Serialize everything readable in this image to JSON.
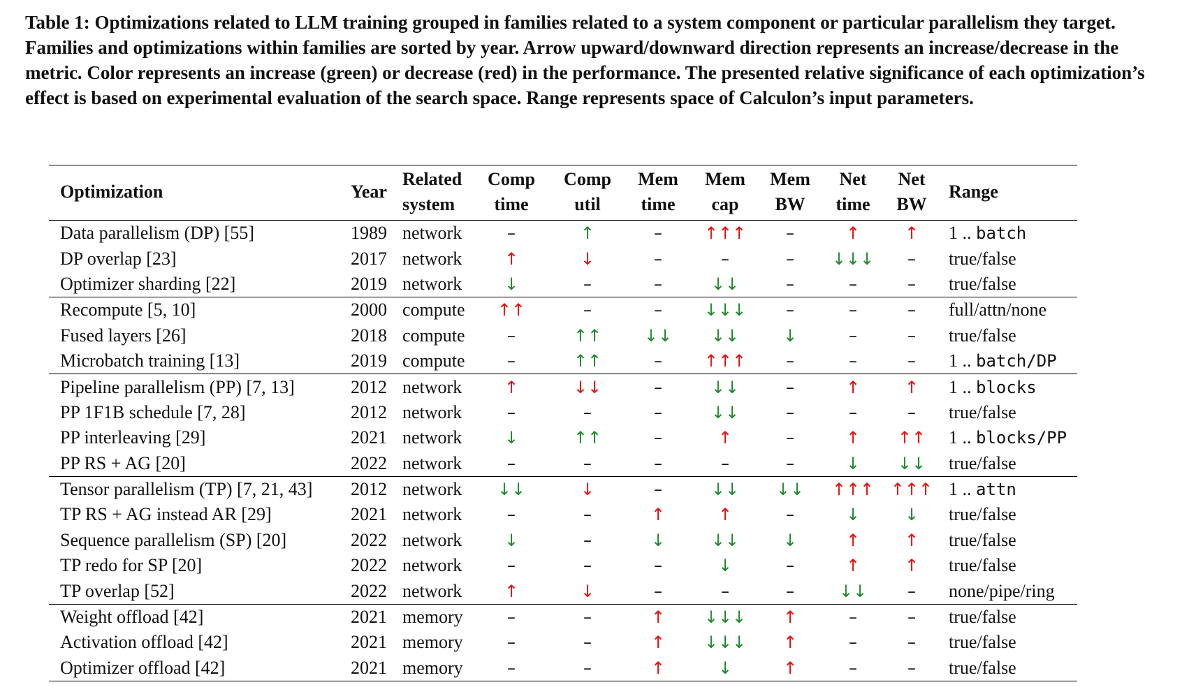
{
  "caption": "Table 1: Optimizations related to LLM training grouped in families related to a system component or particular parallelism they target. Families and optimizations within families are sorted by year. Arrow upward/downward direction represents an increase/decrease in the metric. Color represents an increase (green) or decrease (red) in the performance. The presented relative significance of each optimization’s effect is based on experimental evaluation of the search space. Range represents space of Calculon’s input parameters.",
  "headers": {
    "optimization": "Optimization",
    "year": "Year",
    "related_1": "Related",
    "related_2": "system",
    "comp_time_1": "Comp",
    "comp_time_2": "time",
    "comp_util_1": "Comp",
    "comp_util_2": "util",
    "mem_time_1": "Mem",
    "mem_time_2": "time",
    "mem_cap_1": "Mem",
    "mem_cap_2": "cap",
    "mem_bw_1": "Mem",
    "mem_bw_2": "BW",
    "net_time_1": "Net",
    "net_time_2": "time",
    "net_bw_1": "Net",
    "net_bw_2": "BW",
    "range": "Range"
  },
  "color_legend": {
    "green": "#1e8a2e",
    "red": "#e8110f"
  },
  "rows": [
    {
      "name": "Data parallelism (DP) [55]",
      "year": "1989",
      "system": "network",
      "cells": [
        [
          "–",
          "n"
        ],
        [
          "↑",
          "g"
        ],
        [
          "–",
          "n"
        ],
        [
          "↑↑↑",
          "r"
        ],
        [
          "–",
          "n"
        ],
        [
          "↑",
          "r"
        ],
        [
          "↑",
          "r"
        ]
      ],
      "range": "1 .. batch",
      "range_mono": "batch",
      "range_prefix": "1 .. ",
      "family_start": false
    },
    {
      "name": "DP overlap [23]",
      "year": "2017",
      "system": "network",
      "cells": [
        [
          "↑",
          "r"
        ],
        [
          "↓",
          "r"
        ],
        [
          "–",
          "n"
        ],
        [
          "–",
          "n"
        ],
        [
          "–",
          "n"
        ],
        [
          "↓↓↓",
          "g"
        ],
        [
          "–",
          "n"
        ]
      ],
      "range": "true/false",
      "family_start": false
    },
    {
      "name": "Optimizer sharding [22]",
      "year": "2019",
      "system": "network",
      "cells": [
        [
          "↓",
          "g"
        ],
        [
          "–",
          "n"
        ],
        [
          "–",
          "n"
        ],
        [
          "↓↓",
          "g"
        ],
        [
          "–",
          "n"
        ],
        [
          "–",
          "n"
        ],
        [
          "–",
          "n"
        ]
      ],
      "range": "true/false",
      "family_start": false
    },
    {
      "name": "Recompute [5, 10]",
      "year": "2000",
      "system": "compute",
      "cells": [
        [
          "↑↑",
          "r"
        ],
        [
          "–",
          "n"
        ],
        [
          "–",
          "n"
        ],
        [
          "↓↓↓",
          "g"
        ],
        [
          "–",
          "n"
        ],
        [
          "–",
          "n"
        ],
        [
          "–",
          "n"
        ]
      ],
      "range": "full/attn/none",
      "family_start": true
    },
    {
      "name": "Fused layers [26]",
      "year": "2018",
      "system": "compute",
      "cells": [
        [
          "–",
          "n"
        ],
        [
          "↑↑",
          "g"
        ],
        [
          "↓↓",
          "g"
        ],
        [
          "↓↓",
          "g"
        ],
        [
          "↓",
          "g"
        ],
        [
          "–",
          "n"
        ],
        [
          "–",
          "n"
        ]
      ],
      "range": "true/false",
      "family_start": false
    },
    {
      "name": "Microbatch training [13]",
      "year": "2019",
      "system": "compute",
      "cells": [
        [
          "–",
          "n"
        ],
        [
          "↑↑",
          "g"
        ],
        [
          "–",
          "n"
        ],
        [
          "↑↑↑",
          "r"
        ],
        [
          "–",
          "n"
        ],
        [
          "–",
          "n"
        ],
        [
          "–",
          "n"
        ]
      ],
      "range_prefix": "1 .. ",
      "range_mono": "batch/DP",
      "family_start": false
    },
    {
      "name": "Pipeline parallelism (PP) [7, 13]",
      "year": "2012",
      "system": "network",
      "cells": [
        [
          "↑",
          "r"
        ],
        [
          "↓↓",
          "r"
        ],
        [
          "–",
          "n"
        ],
        [
          "↓↓",
          "g"
        ],
        [
          "–",
          "n"
        ],
        [
          "↑",
          "r"
        ],
        [
          "↑",
          "r"
        ]
      ],
      "range_prefix": "1 .. ",
      "range_mono": "blocks",
      "family_start": true
    },
    {
      "name": "PP 1F1B schedule [7, 28]",
      "year": "2012",
      "system": "network",
      "cells": [
        [
          "–",
          "n"
        ],
        [
          "–",
          "n"
        ],
        [
          "–",
          "n"
        ],
        [
          "↓↓",
          "g"
        ],
        [
          "–",
          "n"
        ],
        [
          "–",
          "n"
        ],
        [
          "–",
          "n"
        ]
      ],
      "range": "true/false",
      "family_start": false
    },
    {
      "name": "PP interleaving [29]",
      "year": "2021",
      "system": "network",
      "cells": [
        [
          "↓",
          "g"
        ],
        [
          "↑↑",
          "g"
        ],
        [
          "–",
          "n"
        ],
        [
          "↑",
          "r"
        ],
        [
          "–",
          "n"
        ],
        [
          "↑",
          "r"
        ],
        [
          "↑↑",
          "r"
        ]
      ],
      "range_prefix": "1 .. ",
      "range_mono": "blocks/PP",
      "family_start": false
    },
    {
      "name": "PP RS + AG [20]",
      "year": "2022",
      "system": "network",
      "cells": [
        [
          "–",
          "n"
        ],
        [
          "–",
          "n"
        ],
        [
          "–",
          "n"
        ],
        [
          "–",
          "n"
        ],
        [
          "–",
          "n"
        ],
        [
          "↓",
          "g"
        ],
        [
          "↓↓",
          "g"
        ]
      ],
      "range": "true/false",
      "family_start": false
    },
    {
      "name": "Tensor parallelism (TP) [7, 21, 43]",
      "year": "2012",
      "system": "network",
      "cells": [
        [
          "↓↓",
          "g"
        ],
        [
          "↓",
          "r"
        ],
        [
          "–",
          "n"
        ],
        [
          "↓↓",
          "g"
        ],
        [
          "↓↓",
          "g"
        ],
        [
          "↑↑↑",
          "r"
        ],
        [
          "↑↑↑",
          "r"
        ]
      ],
      "range_prefix": "1 .. ",
      "range_mono": "attn",
      "family_start": true
    },
    {
      "name": "TP RS + AG instead AR [29]",
      "year": "2021",
      "system": "network",
      "cells": [
        [
          "–",
          "n"
        ],
        [
          "–",
          "n"
        ],
        [
          "↑",
          "r"
        ],
        [
          "↑",
          "r"
        ],
        [
          "–",
          "n"
        ],
        [
          "↓",
          "g"
        ],
        [
          "↓",
          "g"
        ]
      ],
      "range": "true/false",
      "family_start": false
    },
    {
      "name": "Sequence parallelism (SP) [20]",
      "year": "2022",
      "system": "network",
      "cells": [
        [
          "↓",
          "g"
        ],
        [
          "–",
          "n"
        ],
        [
          "↓",
          "g"
        ],
        [
          "↓↓",
          "g"
        ],
        [
          "↓",
          "g"
        ],
        [
          "↑",
          "r"
        ],
        [
          "↑",
          "r"
        ]
      ],
      "range": "true/false",
      "family_start": false
    },
    {
      "name": "TP redo for SP [20]",
      "year": "2022",
      "system": "network",
      "cells": [
        [
          "–",
          "n"
        ],
        [
          "–",
          "n"
        ],
        [
          "–",
          "n"
        ],
        [
          "↓",
          "g"
        ],
        [
          "–",
          "n"
        ],
        [
          "↑",
          "r"
        ],
        [
          "↑",
          "r"
        ]
      ],
      "range": "true/false",
      "family_start": false
    },
    {
      "name": "TP overlap [52]",
      "year": "2022",
      "system": "network",
      "cells": [
        [
          "↑",
          "r"
        ],
        [
          "↓",
          "r"
        ],
        [
          "–",
          "n"
        ],
        [
          "–",
          "n"
        ],
        [
          "–",
          "n"
        ],
        [
          "↓↓",
          "g"
        ],
        [
          "–",
          "n"
        ]
      ],
      "range": "none/pipe/ring",
      "family_start": false
    },
    {
      "name": "Weight offload [42]",
      "year": "2021",
      "system": "memory",
      "cells": [
        [
          "–",
          "n"
        ],
        [
          "–",
          "n"
        ],
        [
          "↑",
          "r"
        ],
        [
          "↓↓↓",
          "g"
        ],
        [
          "↑",
          "r"
        ],
        [
          "–",
          "n"
        ],
        [
          "–",
          "n"
        ]
      ],
      "range": "true/false",
      "family_start": true
    },
    {
      "name": "Activation offload [42]",
      "year": "2021",
      "system": "memory",
      "cells": [
        [
          "–",
          "n"
        ],
        [
          "–",
          "n"
        ],
        [
          "↑",
          "r"
        ],
        [
          "↓↓↓",
          "g"
        ],
        [
          "↑",
          "r"
        ],
        [
          "–",
          "n"
        ],
        [
          "–",
          "n"
        ]
      ],
      "range": "true/false",
      "family_start": false
    },
    {
      "name": "Optimizer offload [42]",
      "year": "2021",
      "system": "memory",
      "cells": [
        [
          "–",
          "n"
        ],
        [
          "–",
          "n"
        ],
        [
          "↑",
          "r"
        ],
        [
          "↓",
          "g"
        ],
        [
          "↑",
          "r"
        ],
        [
          "–",
          "n"
        ],
        [
          "–",
          "n"
        ]
      ],
      "range": "true/false",
      "family_start": false
    }
  ]
}
